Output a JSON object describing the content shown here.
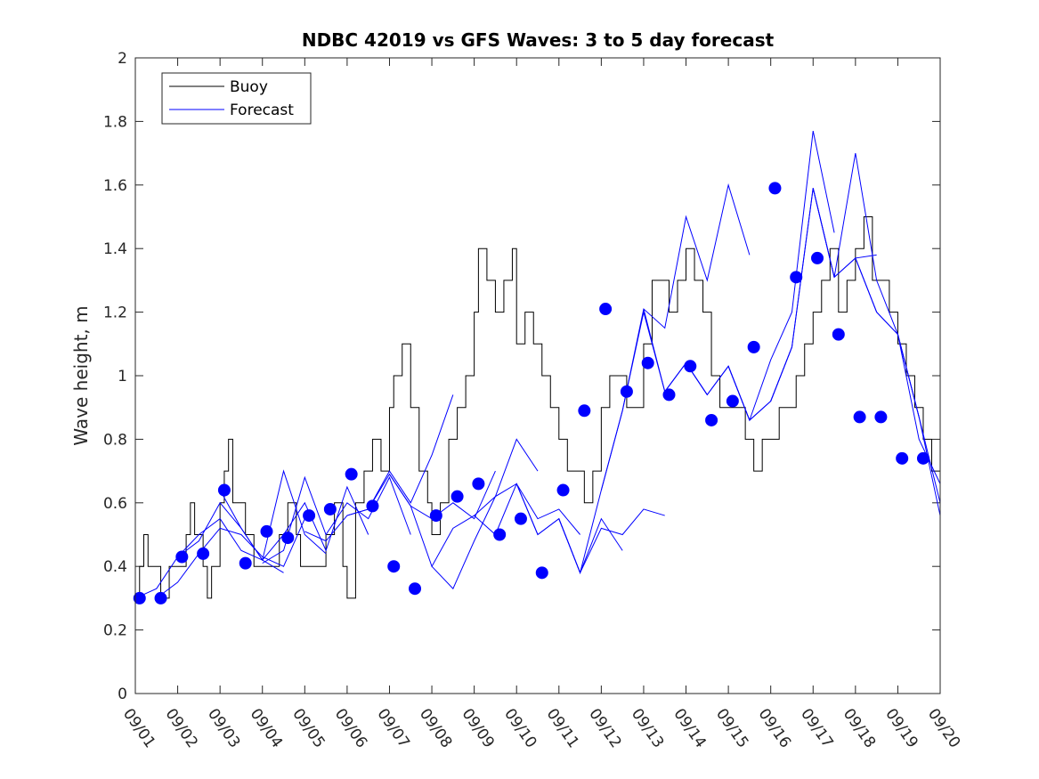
{
  "chart_data": {
    "type": "line",
    "title": "NDBC 42019 vs GFS Waves: 3 to 5 day forecast",
    "xlabel": "",
    "ylabel": "Wave height, m",
    "xlim": [
      0,
      19
    ],
    "ylim": [
      0,
      2
    ],
    "yticks": [
      0,
      0.2,
      0.4,
      0.6,
      0.8,
      1,
      1.2,
      1.4,
      1.6,
      1.8,
      2
    ],
    "ytick_labels": [
      "0",
      "0.2",
      "0.4",
      "0.6",
      "0.8",
      "1",
      "1.2",
      "1.4",
      "1.6",
      "1.8",
      "2"
    ],
    "xtick_labels": [
      "09/01",
      "09/02",
      "09/03",
      "09/04",
      "09/05",
      "09/06",
      "09/07",
      "09/08",
      "09/09",
      "09/10",
      "09/11",
      "09/12",
      "09/13",
      "09/14",
      "09/15",
      "09/16",
      "09/17",
      "09/18",
      "09/19",
      "09/20"
    ],
    "legend": {
      "location": "top-left",
      "entries": [
        {
          "label": "Buoy",
          "color": "#000000"
        },
        {
          "label": "Forecast",
          "color": "#0000ff"
        }
      ]
    },
    "series": [
      {
        "name": "Buoy",
        "color": "#000000",
        "step": true,
        "x": [
          0,
          0.1,
          0.2,
          0.3,
          0.4,
          0.6,
          0.8,
          1.0,
          1.2,
          1.3,
          1.4,
          1.5,
          1.6,
          1.7,
          1.8,
          2.0,
          2.1,
          2.2,
          2.3,
          2.5,
          2.6,
          2.8,
          3.0,
          3.2,
          3.4,
          3.6,
          3.8,
          3.9,
          4.0,
          4.1,
          4.3,
          4.5,
          4.7,
          4.9,
          5.0,
          5.2,
          5.4,
          5.6,
          5.8,
          6.0,
          6.1,
          6.3,
          6.5,
          6.7,
          6.9,
          7.0,
          7.2,
          7.4,
          7.6,
          7.8,
          8.0,
          8.1,
          8.3,
          8.5,
          8.7,
          8.9,
          9.0,
          9.2,
          9.4,
          9.6,
          9.8,
          10.0,
          10.2,
          10.4,
          10.6,
          10.8,
          11.0,
          11.2,
          11.4,
          11.6,
          11.8,
          12.0,
          12.2,
          12.4,
          12.6,
          12.8,
          13.0,
          13.2,
          13.4,
          13.6,
          13.8,
          14.0,
          14.2,
          14.4,
          14.6,
          14.8,
          15.0,
          15.2,
          15.4,
          15.6,
          15.8,
          16.0,
          16.2,
          16.4,
          16.6,
          16.8,
          17.0,
          17.2,
          17.4,
          17.6,
          17.8,
          18.0,
          18.2,
          18.4,
          18.6,
          18.8,
          19.0
        ],
        "values": [
          0.3,
          0.4,
          0.5,
          0.4,
          0.4,
          0.3,
          0.4,
          0.4,
          0.5,
          0.6,
          0.5,
          0.5,
          0.4,
          0.3,
          0.4,
          0.6,
          0.7,
          0.8,
          0.6,
          0.6,
          0.5,
          0.4,
          0.4,
          0.4,
          0.5,
          0.6,
          0.5,
          0.4,
          0.4,
          0.4,
          0.4,
          0.5,
          0.6,
          0.4,
          0.3,
          0.6,
          0.7,
          0.8,
          0.7,
          0.9,
          1.0,
          1.1,
          0.9,
          0.7,
          0.6,
          0.5,
          0.6,
          0.8,
          0.9,
          1.0,
          1.2,
          1.4,
          1.3,
          1.2,
          1.3,
          1.4,
          1.1,
          1.2,
          1.1,
          1.0,
          0.9,
          0.8,
          0.7,
          0.7,
          0.6,
          0.7,
          0.9,
          1.0,
          1.0,
          0.9,
          0.9,
          1.1,
          1.3,
          1.3,
          1.2,
          1.3,
          1.4,
          1.3,
          1.2,
          1.0,
          0.9,
          0.9,
          0.9,
          0.8,
          0.7,
          0.8,
          0.8,
          0.9,
          0.9,
          1.0,
          1.1,
          1.2,
          1.3,
          1.4,
          1.2,
          1.3,
          1.4,
          1.5,
          1.3,
          1.3,
          1.2,
          1.1,
          1.0,
          0.9,
          0.8,
          0.7,
          0.7
        ]
      },
      {
        "name": "Forecast",
        "color": "#0000ff",
        "lines": [
          {
            "x": [
              0,
              0.5,
              1.0,
              1.5,
              2.0,
              2.5,
              3.0,
              3.5
            ],
            "values": [
              0.3,
              0.33,
              0.43,
              0.5,
              0.55,
              0.45,
              0.42,
              0.38
            ]
          },
          {
            "x": [
              0.5,
              1.0,
              1.5,
              2.0,
              2.5,
              3.0,
              3.5,
              4.0
            ],
            "values": [
              0.3,
              0.35,
              0.44,
              0.52,
              0.5,
              0.43,
              0.4,
              0.55
            ]
          },
          {
            "x": [
              1.0,
              1.5,
              2.0,
              2.5,
              3.0,
              3.5,
              4.0,
              4.5
            ],
            "values": [
              0.43,
              0.48,
              0.6,
              0.52,
              0.42,
              0.7,
              0.5,
              0.44
            ]
          },
          {
            "x": [
              2.0,
              2.5,
              3.0,
              3.5,
              4.0,
              4.5,
              5.0,
              5.5
            ],
            "values": [
              0.64,
              0.52,
              0.42,
              0.5,
              0.6,
              0.45,
              0.65,
              0.5
            ]
          },
          {
            "x": [
              3.0,
              3.5,
              4.0,
              4.5,
              5.0,
              5.5,
              6.0,
              6.5
            ],
            "values": [
              0.41,
              0.45,
              0.68,
              0.5,
              0.6,
              0.55,
              0.68,
              0.5
            ]
          },
          {
            "x": [
              4.0,
              4.5,
              5.0,
              5.5,
              6.0,
              6.5,
              7.0,
              7.5
            ],
            "values": [
              0.51,
              0.48,
              0.56,
              0.58,
              0.7,
              0.6,
              0.75,
              0.94
            ]
          },
          {
            "x": [
              5.0,
              5.5,
              6.0,
              6.5,
              7.0,
              7.5,
              8.0,
              8.5
            ],
            "values": [
              0.56,
              0.58,
              0.69,
              0.59,
              0.55,
              0.6,
              0.55,
              0.7
            ]
          },
          {
            "x": [
              6.0,
              6.5,
              7.0,
              7.5,
              8.0,
              8.5,
              9.0,
              9.5
            ],
            "values": [
              0.69,
              0.59,
              0.4,
              0.52,
              0.56,
              0.62,
              0.8,
              0.7
            ]
          },
          {
            "x": [
              7.0,
              7.5,
              8.0,
              8.5,
              9.0,
              9.5,
              10.0,
              10.5
            ],
            "values": [
              0.4,
              0.33,
              0.48,
              0.62,
              0.66,
              0.55,
              0.58,
              0.5
            ]
          },
          {
            "x": [
              8.0,
              8.5,
              9.0,
              9.5,
              10.0,
              10.5,
              11.0,
              11.5
            ],
            "values": [
              0.56,
              0.5,
              0.66,
              0.5,
              0.55,
              0.38,
              0.55,
              0.45
            ]
          },
          {
            "x": [
              9.0,
              9.5,
              10.0,
              10.5,
              11.0,
              11.5,
              12.0,
              12.5
            ],
            "values": [
              0.66,
              0.5,
              0.55,
              0.38,
              0.52,
              0.5,
              0.58,
              0.56
            ]
          },
          {
            "x": [
              10.0,
              10.5,
              11.0,
              11.5,
              12.0,
              12.5,
              13.0,
              13.5
            ],
            "values": [
              0.55,
              0.38,
              0.64,
              0.89,
              1.2,
              0.95,
              1.04,
              0.94
            ]
          },
          {
            "x": [
              11.0,
              11.5,
              12.0,
              12.5,
              13.0,
              13.5,
              14.0,
              14.5
            ],
            "values": [
              0.64,
              0.89,
              1.21,
              1.15,
              1.5,
              1.3,
              1.6,
              1.38
            ]
          },
          {
            "x": [
              12.0,
              12.5,
              13.0,
              13.5,
              14.0,
              14.5,
              15.0,
              15.5
            ],
            "values": [
              1.21,
              0.95,
              1.04,
              0.94,
              1.03,
              0.86,
              0.92,
              1.09
            ]
          },
          {
            "x": [
              13.0,
              13.5,
              14.0,
              14.5,
              15.0,
              15.5,
              16.0,
              16.5
            ],
            "values": [
              1.04,
              0.94,
              1.03,
              0.86,
              1.05,
              1.2,
              1.77,
              1.45
            ]
          },
          {
            "x": [
              14.0,
              14.5,
              15.0,
              15.5,
              16.0,
              16.5,
              17.0,
              17.5
            ],
            "values": [
              1.03,
              0.86,
              0.92,
              1.09,
              1.59,
              1.31,
              1.37,
              1.38
            ]
          },
          {
            "x": [
              15.0,
              15.5,
              16.0,
              16.5,
              17.0,
              17.5,
              18.0,
              18.5
            ],
            "values": [
              0.92,
              1.09,
              1.59,
              1.31,
              1.37,
              1.2,
              1.13,
              0.87
            ]
          },
          {
            "x": [
              16.0,
              16.5,
              17.0,
              17.5,
              18.0,
              18.5,
              19.0
            ],
            "values": [
              1.59,
              1.31,
              1.7,
              1.3,
              1.13,
              0.87,
              0.6
            ]
          },
          {
            "x": [
              17.0,
              17.5,
              18.0,
              18.5,
              19.0
            ],
            "values": [
              1.37,
              1.2,
              1.13,
              0.87,
              0.56
            ]
          },
          {
            "x": [
              18.0,
              18.5,
              19.0
            ],
            "values": [
              1.13,
              0.8,
              0.66
            ]
          }
        ],
        "markers": {
          "x": [
            0.1,
            0.6,
            1.1,
            1.6,
            2.1,
            2.6,
            3.1,
            3.6,
            4.1,
            4.6,
            5.1,
            5.6,
            6.1,
            6.6,
            7.1,
            7.6,
            8.1,
            8.6,
            9.1,
            9.6,
            10.1,
            10.6,
            11.1,
            11.6,
            12.1,
            12.6,
            13.1,
            13.6,
            14.1,
            14.6,
            15.1,
            15.6,
            16.1,
            16.6,
            17.1,
            17.6,
            18.1,
            18.6
          ],
          "values": [
            0.3,
            0.3,
            0.43,
            0.44,
            0.64,
            0.41,
            0.51,
            0.49,
            0.56,
            0.58,
            0.69,
            0.59,
            0.4,
            0.33,
            0.56,
            0.62,
            0.66,
            0.5,
            0.55,
            0.38,
            0.64,
            0.89,
            1.21,
            0.95,
            1.04,
            0.94,
            1.03,
            0.86,
            0.92,
            1.09,
            1.59,
            1.31,
            1.37,
            1.13,
            0.87,
            0.87,
            0.74,
            0.74
          ]
        }
      }
    ]
  }
}
